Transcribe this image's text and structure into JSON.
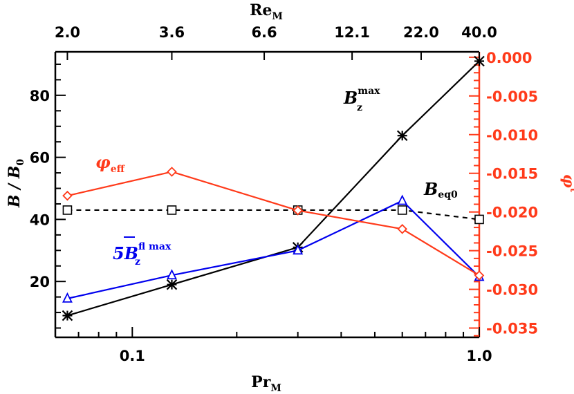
{
  "chart_data": {
    "type": "line",
    "x_axis_bottom": {
      "label_main": "Pr",
      "label_sub": "M",
      "scale": "log",
      "range": [
        0.06,
        1.0
      ],
      "ticks": [
        0.1,
        1.0
      ],
      "tick_labels": [
        "0.1",
        "1.0"
      ]
    },
    "x_axis_top": {
      "label_main": "Re",
      "label_sub": "M",
      "ticks_at_pr": [
        0.065,
        0.13,
        0.24,
        0.43,
        0.68,
        1.0
      ],
      "tick_labels": [
        "2.0",
        "3.6",
        "6.6",
        "12.1",
        "22.0",
        "40.0"
      ]
    },
    "y_axis_left": {
      "label_main": "B",
      "label_sep": " / ",
      "label_denom": "B",
      "label_denom_sub": "0",
      "range": [
        2,
        94
      ],
      "ticks": [
        20,
        40,
        60,
        80
      ],
      "tick_labels": [
        "20",
        "40",
        "60",
        "80"
      ]
    },
    "y_axis_right": {
      "label_main": "φ",
      "label_sup": "t",
      "color": "#ff3a1a",
      "range": [
        -0.0362,
        0.0007
      ],
      "ticks": [
        0.0,
        -0.005,
        -0.01,
        -0.015,
        -0.02,
        -0.025,
        -0.03,
        -0.035
      ],
      "tick_labels": [
        "0.000",
        "-0.005",
        "-0.010",
        "-0.015",
        "-0.020",
        "-0.025",
        "-0.030",
        "-0.035"
      ]
    },
    "x": [
      0.065,
      0.13,
      0.3,
      0.6,
      1.0
    ],
    "series": [
      {
        "id": "bz-max",
        "color": "#000000",
        "dash": "",
        "marker": "asterisk",
        "axis": "left",
        "values": [
          9,
          19,
          31,
          67,
          91
        ]
      },
      {
        "id": "beq0",
        "color": "#000000",
        "dash": "7,6",
        "marker": "square",
        "axis": "left",
        "values": [
          43,
          43,
          43,
          43,
          40
        ]
      },
      {
        "id": "bfl-max",
        "color": "#0000ee",
        "dash": "",
        "marker": "triangle",
        "axis": "left",
        "values": [
          14.5,
          22,
          30,
          46,
          21.5
        ]
      },
      {
        "id": "phi-eff",
        "color": "#ff3a1a",
        "dash": "",
        "marker": "diamond",
        "axis": "right",
        "values": [
          -0.0179,
          -0.0148,
          -0.0198,
          -0.0222,
          -0.0282
        ]
      }
    ],
    "annotations": {
      "bz_max": {
        "main": "B",
        "sub": "z",
        "sup": "max",
        "color": "#000000"
      },
      "beq0": {
        "main": "B",
        "sub": "eq0",
        "color": "#000000"
      },
      "bfl_max": {
        "prefix": "5",
        "main": "B",
        "sub": "z",
        "sup": "fl max",
        "color": "#0000ee"
      },
      "phi_eff": {
        "main": "φ",
        "sub": "eff",
        "color": "#ff3a1a"
      }
    }
  }
}
